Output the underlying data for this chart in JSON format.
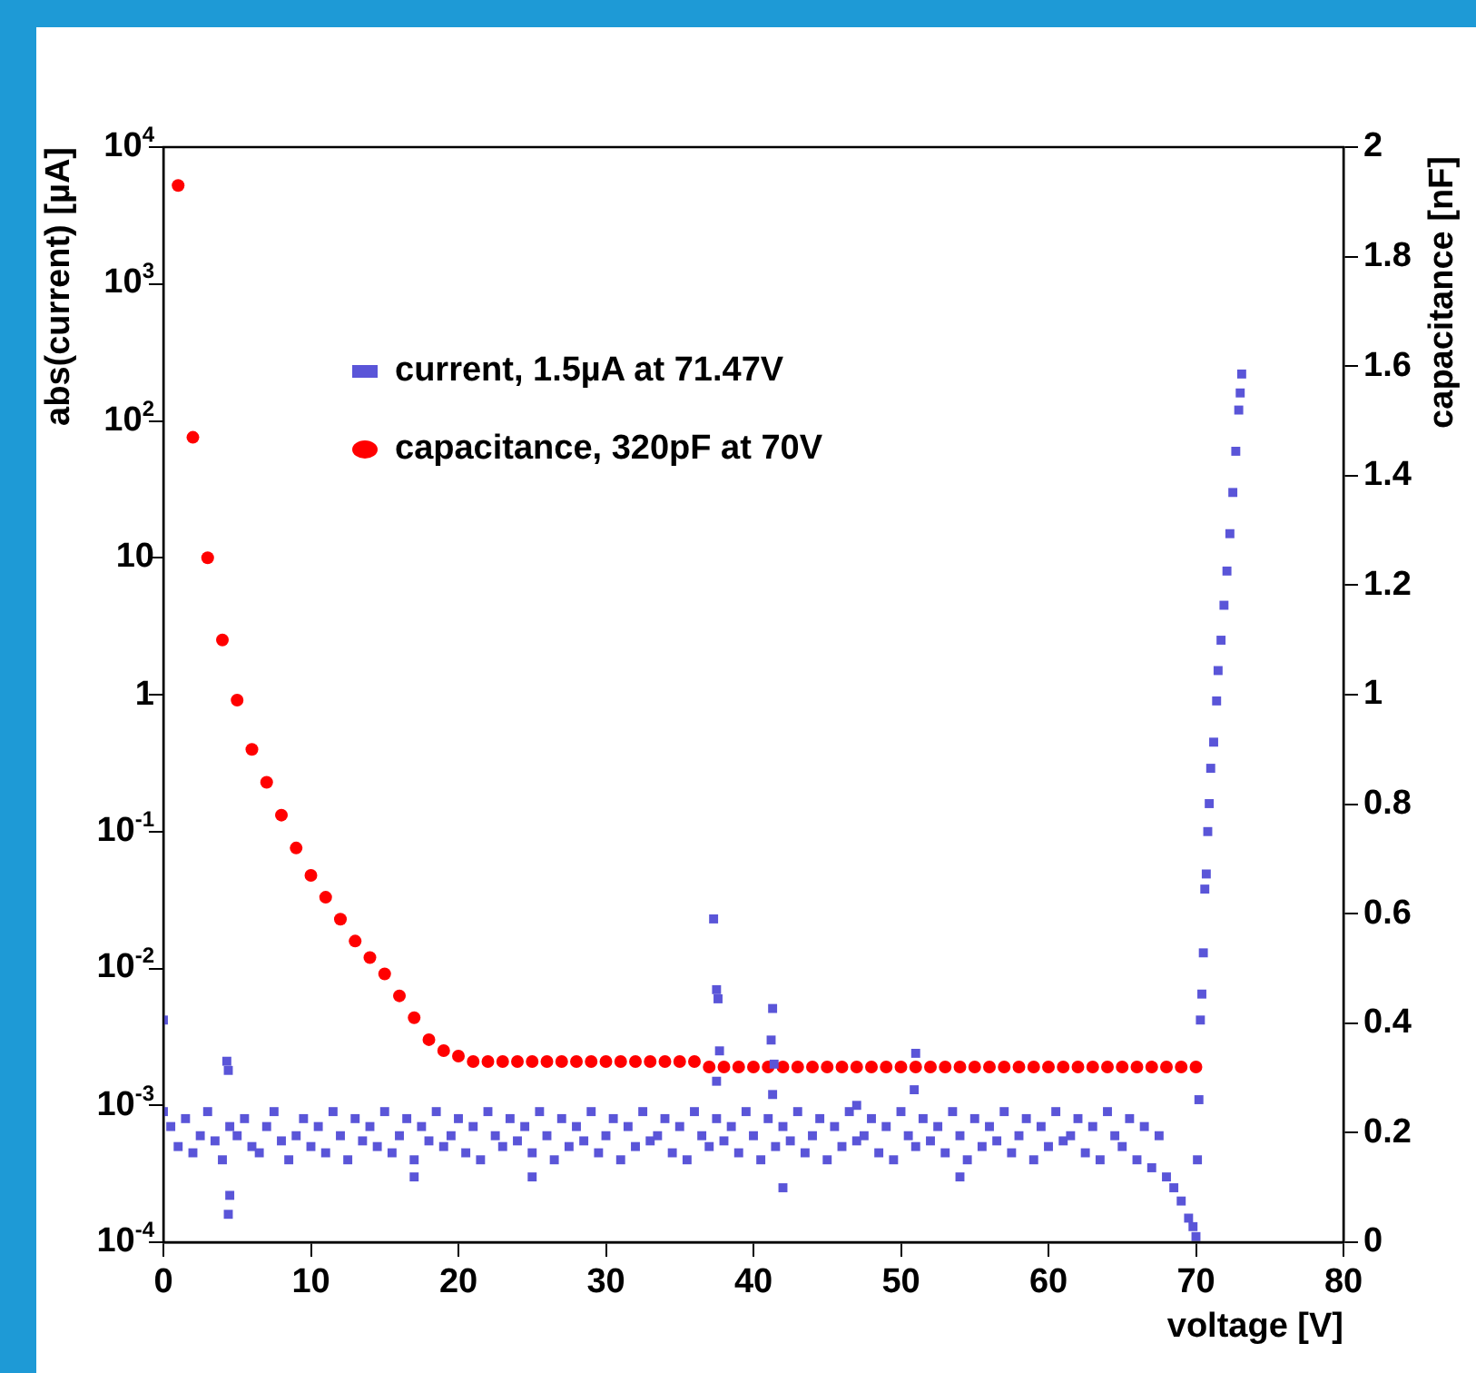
{
  "chart_data": {
    "type": "scatter",
    "xlabel": "voltage [V]",
    "ylabel": "abs(current) [µA]",
    "y2label": "capacitance [nF]",
    "xlim": [
      0,
      80
    ],
    "xticks": [
      0,
      10,
      20,
      30,
      40,
      50,
      60,
      70,
      80
    ],
    "ylim": [
      0.0001,
      10000
    ],
    "yticks": [
      {
        "value": 0.0001,
        "label": "10$^{-4}$"
      },
      {
        "value": 0.001,
        "label": "10$^{-3}$"
      },
      {
        "value": 0.01,
        "label": "10$^{-2}$"
      },
      {
        "value": 0.1,
        "label": "10$^{-1}$"
      },
      1,
      10,
      {
        "value": 100,
        "label": "10$^{2}$"
      },
      {
        "value": 1000,
        "label": "10$^{3}$"
      },
      {
        "value": 10000,
        "label": "10$^{4}$"
      }
    ],
    "y2lim": [
      0,
      2
    ],
    "y2ticks": [
      0,
      0.2,
      0.4,
      0.6,
      0.8,
      1,
      1.2,
      1.4,
      1.6,
      1.8,
      2
    ],
    "log": "y",
    "grid": false,
    "legend": "top left",
    "series": [
      {
        "name": "current, 1.5µA at 71.47V",
        "color": "#5a55d8",
        "marker": "square",
        "x": [
          0,
          0.5,
          1,
          1.5,
          2,
          2.5,
          3,
          3.5,
          4,
          4.5,
          5,
          5.5,
          6,
          6.5,
          7,
          7.5,
          8,
          8.5,
          9,
          9.5,
          10,
          10.5,
          11,
          11.5,
          12,
          12.5,
          13,
          13.5,
          14,
          14.5,
          15,
          15.5,
          16,
          16.5,
          17,
          17.5,
          18,
          18.5,
          19,
          19.5,
          20,
          20.5,
          21,
          21.5,
          22,
          22.5,
          23,
          23.5,
          24,
          24.5,
          25,
          25.5,
          26,
          26.5,
          27,
          27.5,
          28,
          28.5,
          29,
          29.5,
          30,
          30.5,
          31,
          31.5,
          32,
          32.5,
          33,
          33.5,
          34,
          34.5,
          35,
          35.5,
          36,
          36.5,
          37,
          37.5,
          38,
          38.5,
          39,
          39.5,
          40,
          40.5,
          41,
          41.5,
          42,
          42.5,
          43,
          43.5,
          44,
          44.5,
          45,
          45.5,
          46,
          46.5,
          47,
          47.5,
          48,
          48.5,
          49,
          49.5,
          50,
          50.5,
          51,
          51.5,
          52,
          52.5,
          53,
          53.5,
          54,
          54.5,
          55,
          55.5,
          56,
          56.5,
          57,
          57.5,
          58,
          58.5,
          59,
          59.5,
          60,
          60.5,
          61,
          61.5,
          62,
          62.5,
          63,
          63.5,
          64,
          64.5,
          65,
          65.5,
          66,
          66.5,
          67,
          67.5,
          68,
          68.5,
          69,
          69.5,
          0,
          4.3,
          4.4,
          4.5,
          4.4,
          17,
          25,
          37.3,
          37.5,
          37.6,
          37.7,
          37.5,
          41.3,
          41.2,
          41.4,
          41.3,
          42,
          51,
          50.9,
          54,
          47,
          69.8,
          70,
          70.1,
          70.2,
          70.3,
          70.4,
          70.5,
          70.6,
          70.7,
          70.8,
          70.9,
          71,
          71.2,
          71.4,
          71.5,
          71.7,
          71.9,
          72.1,
          72.3,
          72.5,
          72.7,
          72.9,
          73,
          73.1
        ],
        "values": [
          0.0009,
          0.0007,
          0.0005,
          0.0008,
          0.00045,
          0.0006,
          0.0009,
          0.00055,
          0.0004,
          0.0007,
          0.0006,
          0.0008,
          0.0005,
          0.00045,
          0.0007,
          0.0009,
          0.00055,
          0.0004,
          0.0006,
          0.0008,
          0.0005,
          0.0007,
          0.00045,
          0.0009,
          0.0006,
          0.0004,
          0.0008,
          0.00055,
          0.0007,
          0.0005,
          0.0009,
          0.00045,
          0.0006,
          0.0008,
          0.0004,
          0.0007,
          0.00055,
          0.0009,
          0.0005,
          0.0006,
          0.0008,
          0.00045,
          0.0007,
          0.0004,
          0.0009,
          0.0006,
          0.0005,
          0.0008,
          0.00055,
          0.0007,
          0.00045,
          0.0009,
          0.0006,
          0.0004,
          0.0008,
          0.0005,
          0.0007,
          0.00055,
          0.0009,
          0.00045,
          0.0006,
          0.0008,
          0.0004,
          0.0007,
          0.0005,
          0.0009,
          0.00055,
          0.0006,
          0.0008,
          0.00045,
          0.0007,
          0.0004,
          0.0009,
          0.0006,
          0.0005,
          0.0008,
          0.00055,
          0.0007,
          0.00045,
          0.0009,
          0.0006,
          0.0004,
          0.0008,
          0.0005,
          0.0007,
          0.00055,
          0.0009,
          0.00045,
          0.0006,
          0.0008,
          0.0004,
          0.0007,
          0.0005,
          0.0009,
          0.00055,
          0.0006,
          0.0008,
          0.00045,
          0.0007,
          0.0004,
          0.0009,
          0.0006,
          0.0005,
          0.0008,
          0.00055,
          0.0007,
          0.00045,
          0.0009,
          0.0006,
          0.0004,
          0.0008,
          0.0005,
          0.0007,
          0.00055,
          0.0009,
          0.00045,
          0.0006,
          0.0008,
          0.0004,
          0.0007,
          0.0005,
          0.0009,
          0.00055,
          0.0006,
          0.0008,
          0.00045,
          0.0007,
          0.0004,
          0.0009,
          0.0006,
          0.0005,
          0.0008,
          0.0004,
          0.0007,
          0.00035,
          0.0006,
          0.0003,
          0.00025,
          0.0002,
          0.00015,
          0.0042,
          0.0021,
          0.0018,
          0.00022,
          0.00016,
          0.0003,
          0.0003,
          0.023,
          0.007,
          0.006,
          0.0025,
          0.0015,
          0.0051,
          0.003,
          0.002,
          0.0012,
          0.00025,
          0.0024,
          0.0013,
          0.0003,
          0.001,
          0.00013,
          0.00011,
          0.0004,
          0.0011,
          0.0042,
          0.0065,
          0.013,
          0.038,
          0.049,
          0.1,
          0.16,
          0.29,
          0.45,
          0.9,
          1.5,
          2.5,
          4.5,
          8,
          15,
          30,
          60,
          120,
          160,
          220
        ]
      },
      {
        "name": "capacitance, 320pF at 70V",
        "color": "#ff0000",
        "marker": "circle",
        "axis": "y2",
        "x": [
          1,
          2,
          3,
          4,
          5,
          6,
          7,
          8,
          9,
          10,
          11,
          12,
          13,
          14,
          15,
          16,
          17,
          18,
          19,
          20,
          21,
          22,
          23,
          24,
          25,
          26,
          27,
          28,
          29,
          30,
          31,
          32,
          33,
          34,
          35,
          36,
          37,
          38,
          39,
          40,
          41,
          42,
          43,
          44,
          45,
          46,
          47,
          48,
          49,
          50,
          51,
          52,
          53,
          54,
          55,
          56,
          57,
          58,
          59,
          60,
          61,
          62,
          63,
          64,
          65,
          66,
          67,
          68,
          69,
          70
        ],
        "values": [
          1.93,
          1.47,
          1.25,
          1.1,
          0.99,
          0.9,
          0.84,
          0.78,
          0.72,
          0.67,
          0.63,
          0.59,
          0.55,
          0.52,
          0.49,
          0.45,
          0.41,
          0.37,
          0.35,
          0.34,
          0.33,
          0.33,
          0.33,
          0.33,
          0.33,
          0.33,
          0.33,
          0.33,
          0.33,
          0.33,
          0.33,
          0.33,
          0.33,
          0.33,
          0.33,
          0.33,
          0.32,
          0.32,
          0.32,
          0.32,
          0.32,
          0.32,
          0.32,
          0.32,
          0.32,
          0.32,
          0.32,
          0.32,
          0.32,
          0.32,
          0.32,
          0.32,
          0.32,
          0.32,
          0.32,
          0.32,
          0.32,
          0.32,
          0.32,
          0.32,
          0.32,
          0.32,
          0.32,
          0.32,
          0.32,
          0.32,
          0.32,
          0.32,
          0.32,
          0.32
        ]
      }
    ]
  }
}
